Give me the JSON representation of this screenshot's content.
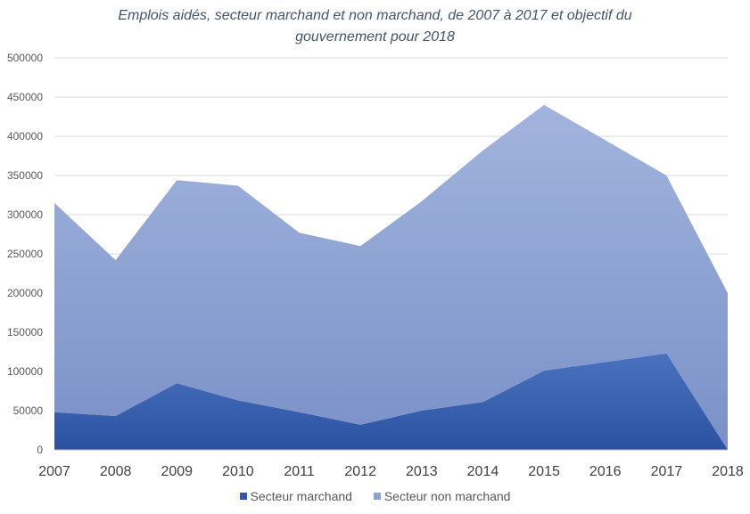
{
  "chart_data": {
    "type": "area",
    "stacked": true,
    "title_lines": [
      "Emplois aidés, secteur marchand et non marchand, de 2007 à 2017 et objectif du",
      "gouvernement pour 2018"
    ],
    "x": [
      "2007",
      "2008",
      "2009",
      "2010",
      "2011",
      "2012",
      "2013",
      "2014",
      "2015",
      "2016",
      "2017",
      "2018"
    ],
    "ylim": [
      0,
      500000
    ],
    "yticks": [
      "0",
      "50000",
      "100000",
      "150000",
      "200000",
      "250000",
      "300000",
      "350000",
      "400000",
      "450000",
      "500000"
    ],
    "grid": true,
    "legend_position": "bottom",
    "series": [
      {
        "name": "Secteur marchand",
        "color": "#2f5aab",
        "values": [
          48000,
          43000,
          85000,
          63000,
          48000,
          32000,
          50000,
          61000,
          101000,
          112000,
          123000,
          0
        ]
      },
      {
        "name": "Secteur non marchand",
        "color": "#8fa2d6",
        "values": [
          267000,
          199000,
          259000,
          274000,
          229000,
          228000,
          267000,
          321000,
          339000,
          283000,
          227000,
          200000
        ]
      }
    ]
  }
}
